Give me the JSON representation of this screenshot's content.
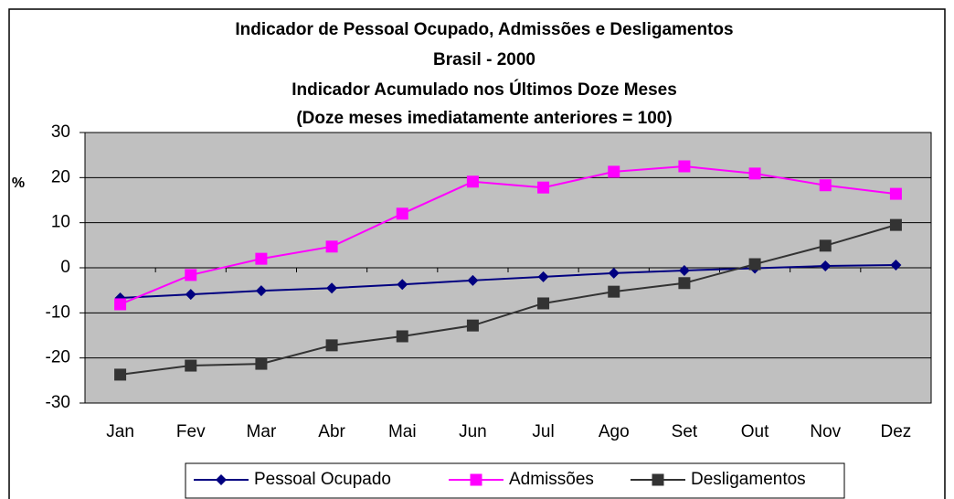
{
  "chart_data": {
    "type": "line",
    "title": "Indicador de Pessoal Ocupado, Admissões e Desligamentos",
    "subtitles": [
      "Brasil - 2000",
      "Indicador Acumulado nos Últimos Doze Meses",
      "(Doze meses imediatamente anteriores = 100)"
    ],
    "y_label": "%",
    "categories": [
      "Jan",
      "Fev",
      "Mar",
      "Abr",
      "Mai",
      "Jun",
      "Jul",
      "Ago",
      "Set",
      "Out",
      "Nov",
      "Dez"
    ],
    "series": [
      {
        "name": "Pessoal Ocupado",
        "color": "#000080",
        "marker": "diamond",
        "values": [
          -6.7,
          -5.9,
          -5.1,
          -4.5,
          -3.7,
          -2.8,
          -2.0,
          -1.2,
          -0.6,
          -0.1,
          0.4,
          0.6
        ]
      },
      {
        "name": "Admissões",
        "color": "#ff00ff",
        "marker": "square",
        "values": [
          -8.1,
          -1.6,
          2.0,
          4.7,
          12.0,
          19.1,
          17.8,
          21.3,
          22.5,
          20.9,
          18.3,
          16.4
        ]
      },
      {
        "name": "Desligamentos",
        "color": "#333333",
        "marker": "square",
        "values": [
          -23.7,
          -21.7,
          -21.3,
          -17.2,
          -15.2,
          -12.8,
          -7.9,
          -5.3,
          -3.4,
          0.8,
          4.9,
          9.5
        ]
      }
    ],
    "ylim": [
      -30,
      30
    ],
    "yticks": [
      -30,
      -20,
      -10,
      0,
      10,
      20,
      30
    ],
    "grid": true,
    "plot_background": "#c0c0c0",
    "legend": "bottom"
  }
}
